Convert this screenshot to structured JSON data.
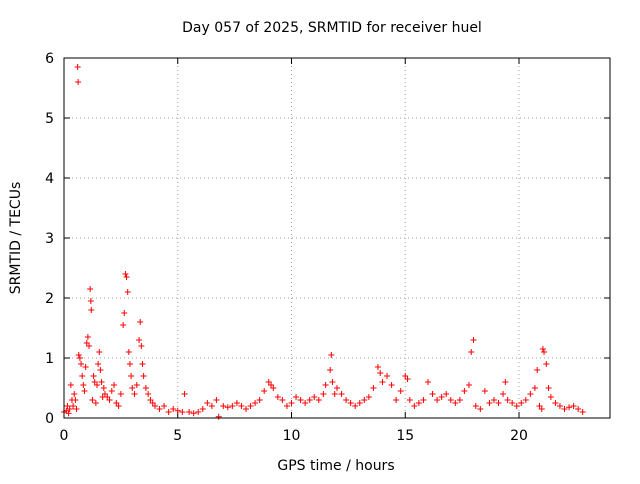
{
  "chart_data": {
    "type": "scatter",
    "title": "Day 057 of 2025, SRMTID for receiver huel",
    "xlabel": "GPS time / hours",
    "ylabel": "SRMTID / TECUs",
    "xlim": [
      0,
      24
    ],
    "ylim": [
      0,
      6
    ],
    "x_ticks": [
      0,
      5,
      10,
      15,
      20
    ],
    "y_ticks": [
      0,
      1,
      2,
      3,
      4,
      5,
      6
    ],
    "grid": true,
    "grid_style": "dotted",
    "marker": "+",
    "series": [
      {
        "color": "#ff0000",
        "points": [
          [
            0.0,
            0.1
          ],
          [
            0.1,
            0.12
          ],
          [
            0.15,
            0.2
          ],
          [
            0.2,
            0.08
          ],
          [
            0.25,
            0.15
          ],
          [
            0.3,
            0.55
          ],
          [
            0.35,
            0.3
          ],
          [
            0.4,
            0.2
          ],
          [
            0.45,
            0.4
          ],
          [
            0.5,
            0.3
          ],
          [
            0.55,
            0.15
          ],
          [
            0.6,
            5.85
          ],
          [
            0.62,
            5.6
          ],
          [
            0.65,
            1.05
          ],
          [
            0.7,
            1.0
          ],
          [
            0.75,
            0.9
          ],
          [
            0.8,
            0.7
          ],
          [
            0.85,
            0.55
          ],
          [
            0.9,
            0.45
          ],
          [
            0.95,
            0.85
          ],
          [
            1.0,
            1.25
          ],
          [
            1.05,
            1.35
          ],
          [
            1.1,
            1.2
          ],
          [
            1.15,
            2.15
          ],
          [
            1.18,
            1.95
          ],
          [
            1.2,
            1.8
          ],
          [
            1.25,
            0.3
          ],
          [
            1.3,
            0.7
          ],
          [
            1.35,
            0.6
          ],
          [
            1.4,
            0.25
          ],
          [
            1.45,
            0.55
          ],
          [
            1.5,
            0.9
          ],
          [
            1.55,
            1.1
          ],
          [
            1.6,
            0.8
          ],
          [
            1.65,
            0.6
          ],
          [
            1.7,
            0.35
          ],
          [
            1.75,
            0.5
          ],
          [
            1.8,
            0.4
          ],
          [
            1.9,
            0.35
          ],
          [
            2.0,
            0.3
          ],
          [
            2.1,
            0.45
          ],
          [
            2.2,
            0.55
          ],
          [
            2.3,
            0.25
          ],
          [
            2.4,
            0.2
          ],
          [
            2.5,
            0.4
          ],
          [
            2.6,
            1.55
          ],
          [
            2.65,
            1.75
          ],
          [
            2.7,
            2.4
          ],
          [
            2.75,
            2.35
          ],
          [
            2.8,
            2.1
          ],
          [
            2.85,
            1.1
          ],
          [
            2.9,
            0.9
          ],
          [
            2.95,
            0.7
          ],
          [
            3.0,
            0.5
          ],
          [
            3.1,
            0.4
          ],
          [
            3.2,
            0.55
          ],
          [
            3.3,
            1.3
          ],
          [
            3.35,
            1.6
          ],
          [
            3.4,
            1.2
          ],
          [
            3.45,
            0.9
          ],
          [
            3.5,
            0.7
          ],
          [
            3.6,
            0.5
          ],
          [
            3.7,
            0.4
          ],
          [
            3.8,
            0.3
          ],
          [
            3.9,
            0.25
          ],
          [
            4.0,
            0.2
          ],
          [
            4.2,
            0.15
          ],
          [
            4.4,
            0.2
          ],
          [
            4.6,
            0.1
          ],
          [
            4.8,
            0.15
          ],
          [
            5.0,
            0.12
          ],
          [
            5.2,
            0.1
          ],
          [
            5.3,
            0.4
          ],
          [
            5.5,
            0.1
          ],
          [
            5.7,
            0.08
          ],
          [
            5.9,
            0.1
          ],
          [
            6.1,
            0.15
          ],
          [
            6.3,
            0.25
          ],
          [
            6.5,
            0.2
          ],
          [
            6.7,
            0.3
          ],
          [
            6.8,
            0.02
          ],
          [
            7.0,
            0.2
          ],
          [
            7.2,
            0.18
          ],
          [
            7.4,
            0.2
          ],
          [
            7.6,
            0.25
          ],
          [
            7.8,
            0.2
          ],
          [
            8.0,
            0.15
          ],
          [
            8.2,
            0.2
          ],
          [
            8.4,
            0.25
          ],
          [
            8.6,
            0.3
          ],
          [
            8.8,
            0.45
          ],
          [
            9.0,
            0.6
          ],
          [
            9.1,
            0.55
          ],
          [
            9.2,
            0.5
          ],
          [
            9.4,
            0.35
          ],
          [
            9.6,
            0.3
          ],
          [
            9.8,
            0.2
          ],
          [
            10.0,
            0.25
          ],
          [
            10.2,
            0.35
          ],
          [
            10.4,
            0.3
          ],
          [
            10.6,
            0.25
          ],
          [
            10.8,
            0.3
          ],
          [
            11.0,
            0.35
          ],
          [
            11.2,
            0.3
          ],
          [
            11.4,
            0.4
          ],
          [
            11.5,
            0.55
          ],
          [
            11.7,
            0.8
          ],
          [
            11.75,
            1.05
          ],
          [
            11.8,
            0.6
          ],
          [
            11.9,
            0.4
          ],
          [
            12.0,
            0.5
          ],
          [
            12.2,
            0.4
          ],
          [
            12.4,
            0.3
          ],
          [
            12.6,
            0.25
          ],
          [
            12.8,
            0.2
          ],
          [
            13.0,
            0.25
          ],
          [
            13.2,
            0.3
          ],
          [
            13.4,
            0.35
          ],
          [
            13.6,
            0.5
          ],
          [
            13.8,
            0.85
          ],
          [
            13.9,
            0.75
          ],
          [
            14.0,
            0.6
          ],
          [
            14.2,
            0.7
          ],
          [
            14.4,
            0.55
          ],
          [
            14.6,
            0.3
          ],
          [
            14.8,
            0.45
          ],
          [
            15.0,
            0.7
          ],
          [
            15.1,
            0.65
          ],
          [
            15.2,
            0.3
          ],
          [
            15.4,
            0.2
          ],
          [
            15.6,
            0.25
          ],
          [
            15.8,
            0.3
          ],
          [
            16.0,
            0.6
          ],
          [
            16.2,
            0.4
          ],
          [
            16.4,
            0.3
          ],
          [
            16.6,
            0.35
          ],
          [
            16.8,
            0.4
          ],
          [
            17.0,
            0.3
          ],
          [
            17.2,
            0.25
          ],
          [
            17.4,
            0.3
          ],
          [
            17.6,
            0.45
          ],
          [
            17.8,
            0.55
          ],
          [
            17.9,
            1.1
          ],
          [
            18.0,
            1.3
          ],
          [
            18.1,
            0.2
          ],
          [
            18.3,
            0.15
          ],
          [
            18.5,
            0.45
          ],
          [
            18.7,
            0.25
          ],
          [
            18.9,
            0.3
          ],
          [
            19.1,
            0.25
          ],
          [
            19.3,
            0.4
          ],
          [
            19.4,
            0.6
          ],
          [
            19.5,
            0.3
          ],
          [
            19.7,
            0.25
          ],
          [
            19.9,
            0.2
          ],
          [
            20.1,
            0.25
          ],
          [
            20.3,
            0.3
          ],
          [
            20.5,
            0.4
          ],
          [
            20.7,
            0.5
          ],
          [
            20.8,
            0.8
          ],
          [
            20.9,
            0.2
          ],
          [
            21.0,
            0.15
          ],
          [
            21.05,
            1.15
          ],
          [
            21.1,
            1.1
          ],
          [
            21.2,
            0.9
          ],
          [
            21.3,
            0.5
          ],
          [
            21.4,
            0.35
          ],
          [
            21.6,
            0.25
          ],
          [
            21.8,
            0.2
          ],
          [
            22.0,
            0.15
          ],
          [
            22.2,
            0.18
          ],
          [
            22.4,
            0.2
          ],
          [
            22.6,
            0.15
          ],
          [
            22.8,
            0.1
          ]
        ]
      }
    ]
  }
}
